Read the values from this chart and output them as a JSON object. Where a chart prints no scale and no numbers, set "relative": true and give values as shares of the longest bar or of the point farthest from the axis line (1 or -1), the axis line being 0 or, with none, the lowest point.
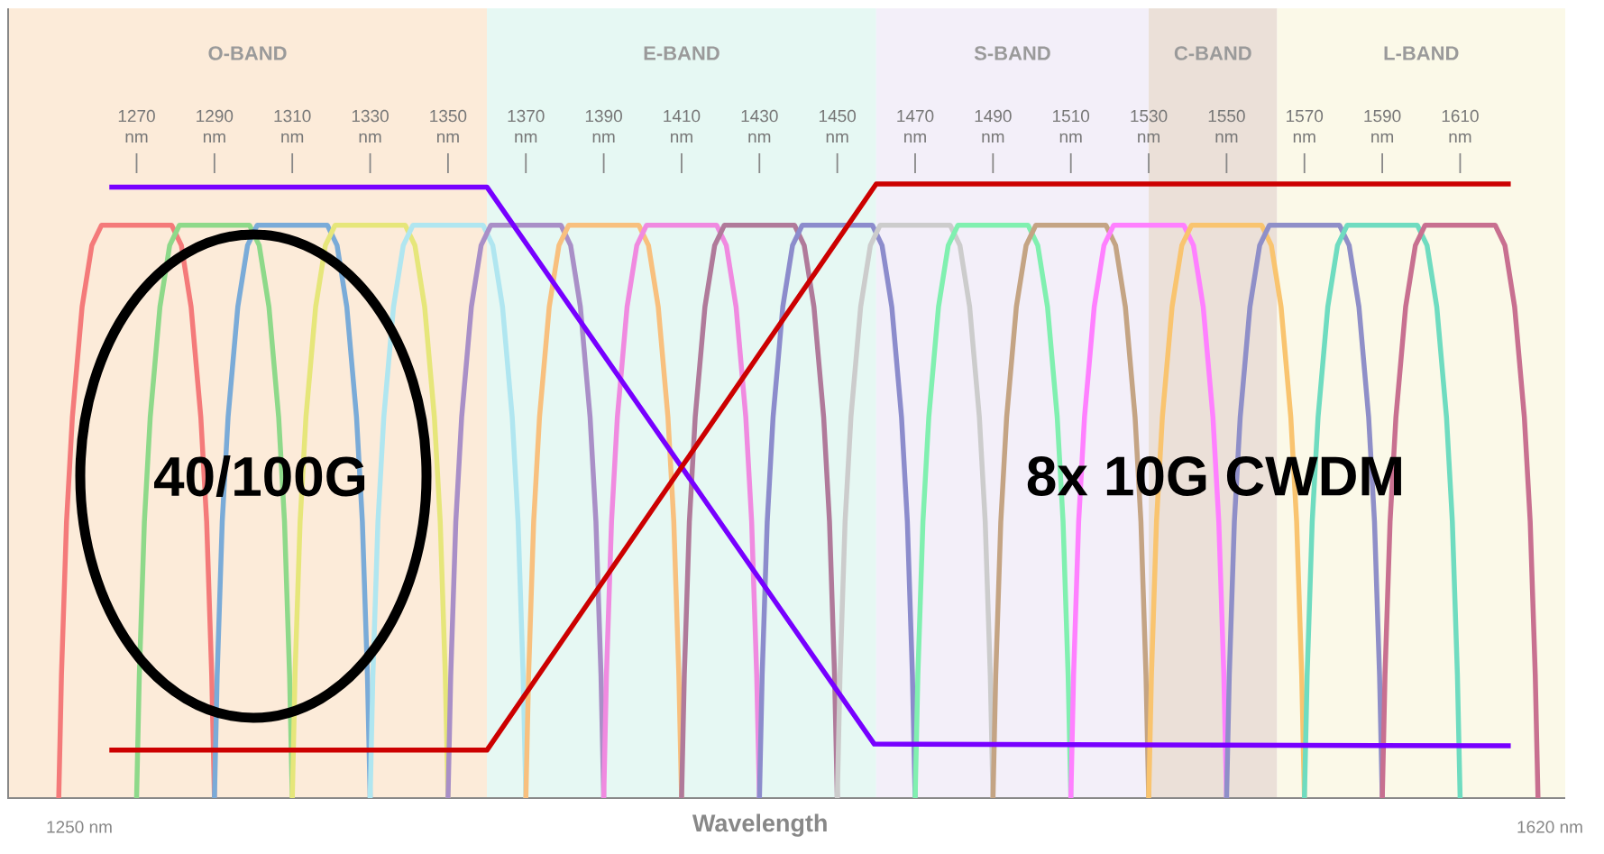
{
  "chart_data": {
    "type": "line",
    "relative": true,
    "xlabel": "Wavelength",
    "xlim": [
      1237,
      1637
    ],
    "xticks": [
      {
        "value": 1270,
        "label": "1270 nm"
      },
      {
        "value": 1290,
        "label": "1290 nm"
      },
      {
        "value": 1310,
        "label": "1310 nm"
      },
      {
        "value": 1330,
        "label": "1330 nm"
      },
      {
        "value": 1350,
        "label": "1350 nm"
      },
      {
        "value": 1370,
        "label": "1370 nm"
      },
      {
        "value": 1390,
        "label": "1390 nm"
      },
      {
        "value": 1410,
        "label": "1410 nm"
      },
      {
        "value": 1430,
        "label": "1430 nm"
      },
      {
        "value": 1450,
        "label": "1450 nm"
      },
      {
        "value": 1470,
        "label": "1470 nm"
      },
      {
        "value": 1490,
        "label": "1490 nm"
      },
      {
        "value": 1510,
        "label": "1510 nm"
      },
      {
        "value": 1530,
        "label": "1530 nm"
      },
      {
        "value": 1550,
        "label": "1550 nm"
      },
      {
        "value": 1570,
        "label": "1570 nm"
      },
      {
        "value": 1590,
        "label": "1590 nm"
      },
      {
        "value": 1610,
        "label": "1610 nm"
      }
    ],
    "bands": [
      {
        "axis": "x",
        "from": 1237,
        "to": 1360,
        "label": "O-BAND",
        "color": "#fcebd9"
      },
      {
        "axis": "x",
        "from": 1360,
        "to": 1460,
        "label": "E-BAND",
        "color": "#e6f8f3"
      },
      {
        "axis": "x",
        "from": 1460,
        "to": 1530,
        "label": "S-BAND",
        "color": "#f3eff9"
      },
      {
        "axis": "x",
        "from": 1530,
        "to": 1563,
        "label": "C-BAND",
        "color": "#ebe0d8"
      },
      {
        "axis": "x",
        "from": 1563,
        "to": 1637,
        "label": "L-BAND",
        "color": "#fbf9e8"
      }
    ],
    "annotations": [
      "40/100G",
      "8x 10G CWDM",
      "1250 nm",
      "1620 nm"
    ],
    "series": [
      {
        "color": "#f47a7a",
        "x": [
          1250,
          1250.7,
          1252,
          1253.5,
          1256,
          1258.5,
          1261,
          1279,
          1281.5,
          1284,
          1286.5,
          1288,
          1289.3,
          1290
        ],
        "values": [
          0,
          0.2,
          0.45,
          0.62,
          0.8,
          0.9,
          0.933,
          0.933,
          0.9,
          0.8,
          0.62,
          0.45,
          0.2,
          0
        ]
      },
      {
        "color": "#8ed98a",
        "x": [
          1270,
          1270.7,
          1272,
          1273.5,
          1276,
          1278.5,
          1281,
          1299,
          1301.5,
          1304,
          1306.5,
          1308,
          1309.3,
          1310
        ],
        "values": [
          0,
          0.2,
          0.45,
          0.62,
          0.8,
          0.9,
          0.933,
          0.933,
          0.9,
          0.8,
          0.62,
          0.45,
          0.2,
          0
        ]
      },
      {
        "color": "#7aabd8",
        "x": [
          1290,
          1290.7,
          1292,
          1293.5,
          1296,
          1298.5,
          1301,
          1319,
          1321.5,
          1324,
          1326.5,
          1328,
          1329.3,
          1330
        ],
        "values": [
          0,
          0.2,
          0.45,
          0.62,
          0.8,
          0.9,
          0.933,
          0.933,
          0.9,
          0.8,
          0.62,
          0.45,
          0.2,
          0
        ]
      },
      {
        "color": "#e6e67a",
        "x": [
          1310,
          1310.7,
          1312,
          1313.5,
          1316,
          1318.5,
          1321,
          1339,
          1341.5,
          1344,
          1346.5,
          1348,
          1349.3,
          1350
        ],
        "values": [
          0,
          0.2,
          0.45,
          0.62,
          0.8,
          0.9,
          0.933,
          0.933,
          0.9,
          0.8,
          0.62,
          0.45,
          0.2,
          0
        ]
      },
      {
        "color": "#b0e6f0",
        "x": [
          1330,
          1330.7,
          1332,
          1333.5,
          1336,
          1338.5,
          1341,
          1359,
          1361.5,
          1364,
          1366.5,
          1368,
          1369.3,
          1370
        ],
        "values": [
          0,
          0.2,
          0.45,
          0.62,
          0.8,
          0.9,
          0.933,
          0.933,
          0.9,
          0.8,
          0.62,
          0.45,
          0.2,
          0
        ]
      },
      {
        "color": "#a98fc7",
        "x": [
          1350,
          1350.7,
          1352,
          1353.5,
          1356,
          1358.5,
          1361,
          1379,
          1381.5,
          1384,
          1386.5,
          1388,
          1389.3,
          1390
        ],
        "values": [
          0,
          0.2,
          0.45,
          0.62,
          0.8,
          0.9,
          0.933,
          0.933,
          0.9,
          0.8,
          0.62,
          0.45,
          0.2,
          0
        ]
      },
      {
        "color": "#f8c07e",
        "x": [
          1370,
          1370.7,
          1372,
          1373.5,
          1376,
          1378.5,
          1381,
          1399,
          1401.5,
          1404,
          1406.5,
          1408,
          1409.3,
          1410
        ],
        "values": [
          0,
          0.2,
          0.45,
          0.62,
          0.8,
          0.9,
          0.933,
          0.933,
          0.9,
          0.8,
          0.62,
          0.45,
          0.2,
          0
        ]
      },
      {
        "color": "#f08ae0",
        "x": [
          1390,
          1390.7,
          1392,
          1393.5,
          1396,
          1398.5,
          1401,
          1419,
          1421.5,
          1424,
          1426.5,
          1428,
          1429.3,
          1430
        ],
        "values": [
          0,
          0.2,
          0.45,
          0.62,
          0.8,
          0.9,
          0.933,
          0.933,
          0.9,
          0.8,
          0.62,
          0.45,
          0.2,
          0
        ]
      },
      {
        "color": "#b07a9a",
        "x": [
          1410,
          1410.7,
          1412,
          1413.5,
          1416,
          1418.5,
          1421,
          1439,
          1441.5,
          1444,
          1446.5,
          1448,
          1449.3,
          1450
        ],
        "values": [
          0,
          0.2,
          0.45,
          0.62,
          0.8,
          0.9,
          0.933,
          0.933,
          0.9,
          0.8,
          0.62,
          0.45,
          0.2,
          0
        ]
      },
      {
        "color": "#8c8ccc",
        "x": [
          1430,
          1430.7,
          1432,
          1433.5,
          1436,
          1438.5,
          1441,
          1459,
          1461.5,
          1464,
          1466.5,
          1468,
          1469.3,
          1470
        ],
        "values": [
          0,
          0.2,
          0.45,
          0.62,
          0.8,
          0.9,
          0.933,
          0.933,
          0.9,
          0.8,
          0.62,
          0.45,
          0.2,
          0
        ]
      },
      {
        "color": "#cccccc",
        "x": [
          1450,
          1450.7,
          1452,
          1453.5,
          1456,
          1458.5,
          1461,
          1479,
          1481.5,
          1484,
          1486.5,
          1488,
          1489.3,
          1490
        ],
        "values": [
          0,
          0.2,
          0.45,
          0.62,
          0.8,
          0.9,
          0.933,
          0.933,
          0.9,
          0.8,
          0.62,
          0.45,
          0.2,
          0
        ]
      },
      {
        "color": "#80f0b0",
        "x": [
          1470,
          1470.7,
          1472,
          1473.5,
          1476,
          1478.5,
          1481,
          1499,
          1501.5,
          1504,
          1506.5,
          1508,
          1509.3,
          1510
        ],
        "values": [
          0,
          0.2,
          0.45,
          0.62,
          0.8,
          0.9,
          0.933,
          0.933,
          0.9,
          0.8,
          0.62,
          0.45,
          0.2,
          0
        ]
      },
      {
        "color": "#c4a484",
        "x": [
          1490,
          1490.7,
          1492,
          1493.5,
          1496,
          1498.5,
          1501,
          1519,
          1521.5,
          1524,
          1526.5,
          1528,
          1529.3,
          1530
        ],
        "values": [
          0,
          0.2,
          0.45,
          0.62,
          0.8,
          0.9,
          0.933,
          0.933,
          0.9,
          0.8,
          0.62,
          0.45,
          0.2,
          0
        ]
      },
      {
        "color": "#ff80ff",
        "x": [
          1510,
          1510.7,
          1512,
          1513.5,
          1516,
          1518.5,
          1521,
          1539,
          1541.5,
          1544,
          1546.5,
          1548,
          1549.3,
          1550
        ],
        "values": [
          0,
          0.2,
          0.45,
          0.62,
          0.8,
          0.9,
          0.933,
          0.933,
          0.9,
          0.8,
          0.62,
          0.45,
          0.2,
          0
        ]
      },
      {
        "color": "#f9c46f",
        "x": [
          1530,
          1530.7,
          1532,
          1533.5,
          1536,
          1538.5,
          1541,
          1559,
          1561.5,
          1564,
          1566.5,
          1568,
          1569.3,
          1570
        ],
        "values": [
          0,
          0.2,
          0.45,
          0.62,
          0.8,
          0.9,
          0.933,
          0.933,
          0.9,
          0.8,
          0.62,
          0.45,
          0.2,
          0
        ]
      },
      {
        "color": "#8f8fc8",
        "x": [
          1550,
          1550.7,
          1552,
          1553.5,
          1556,
          1558.5,
          1561,
          1579,
          1581.5,
          1584,
          1586.5,
          1588,
          1589.3,
          1590
        ],
        "values": [
          0,
          0.2,
          0.45,
          0.62,
          0.8,
          0.9,
          0.933,
          0.933,
          0.9,
          0.8,
          0.62,
          0.45,
          0.2,
          0
        ]
      },
      {
        "color": "#6fdcc0",
        "x": [
          1570,
          1570.7,
          1572,
          1573.5,
          1576,
          1578.5,
          1581,
          1599,
          1601.5,
          1604,
          1606.5,
          1608,
          1609.3,
          1610
        ],
        "values": [
          0,
          0.2,
          0.45,
          0.62,
          0.8,
          0.9,
          0.933,
          0.933,
          0.9,
          0.8,
          0.62,
          0.45,
          0.2,
          0
        ]
      },
      {
        "color": "#c87090",
        "x": [
          1590,
          1590.7,
          1592,
          1593.5,
          1596,
          1598.5,
          1601,
          1619,
          1621.5,
          1624,
          1626.5,
          1628,
          1629.3,
          1630
        ],
        "values": [
          0,
          0.2,
          0.45,
          0.62,
          0.8,
          0.9,
          0.933,
          0.933,
          0.9,
          0.8,
          0.62,
          0.45,
          0.2,
          0
        ]
      },
      {
        "color": "#7700ff",
        "x": [
          1263,
          1360,
          1459.5,
          1623
        ],
        "values": [
          0.995,
          0.995,
          0.088,
          0.085
        ]
      },
      {
        "color": "#cc0000",
        "x": [
          1263,
          1360,
          1460,
          1623
        ],
        "values": [
          0.078,
          0.078,
          1.0,
          1.0
        ]
      }
    ]
  }
}
